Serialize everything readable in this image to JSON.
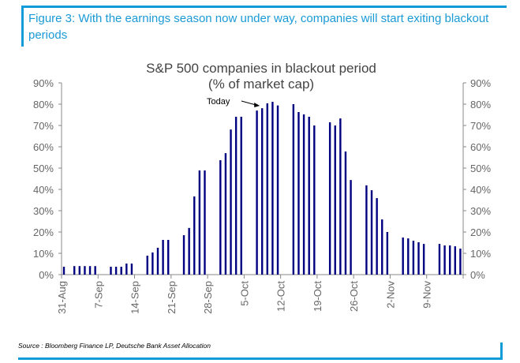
{
  "figure_title": "Figure 3: With the earnings season now under way, companies will start exiting blackout periods",
  "source": "Source : Bloomberg Finance LP, Deutsche Bank Asset Allocation",
  "chart_data": {
    "type": "bar",
    "title": "S&P 500 companies in blackout period",
    "subtitle": "(% of market cap)",
    "xlabel": "",
    "ylabel": "",
    "ylim": [
      0,
      90
    ],
    "yticks": [
      "0%",
      "10%",
      "20%",
      "30%",
      "40%",
      "50%",
      "60%",
      "70%",
      "80%",
      "90%"
    ],
    "xticks": [
      "31-Aug",
      "7-Sep",
      "14-Sep",
      "21-Sep",
      "28-Sep",
      "5-Oct",
      "12-Oct",
      "19-Oct",
      "26-Oct",
      "2-Nov",
      "9-Nov"
    ],
    "annotation": "Today",
    "annotation_day": 38,
    "bar_color": "#000080",
    "days_from_31_aug": [
      0,
      2,
      3,
      4,
      5,
      6,
      9,
      10,
      11,
      12,
      13,
      16,
      17,
      18,
      19,
      20,
      23,
      24,
      25,
      26,
      27,
      30,
      31,
      32,
      33,
      34,
      37,
      38,
      39,
      40,
      41,
      44,
      45,
      46,
      47,
      48,
      51,
      52,
      53,
      54,
      55,
      58,
      59,
      60,
      61,
      62,
      65,
      66,
      67,
      68,
      69,
      72,
      73,
      74,
      75,
      76
    ],
    "values": [
      3.7,
      4,
      4,
      4,
      4,
      4,
      3.7,
      3.7,
      3.7,
      5.2,
      5.2,
      8.9,
      10.4,
      12.6,
      16.3,
      16.3,
      18.5,
      21.9,
      36.7,
      48.9,
      48.9,
      53.7,
      57,
      68.1,
      74.1,
      74.1,
      77,
      78.1,
      80.4,
      81.1,
      79.4,
      80,
      76.3,
      75.2,
      74.1,
      70,
      71.5,
      70,
      73.3,
      57.8,
      44.4,
      41.9,
      39.6,
      35.9,
      25.9,
      20,
      17.4,
      17,
      15.9,
      15.2,
      14.4,
      14.4,
      13.7,
      13.7,
      13.3,
      12.2
    ]
  }
}
